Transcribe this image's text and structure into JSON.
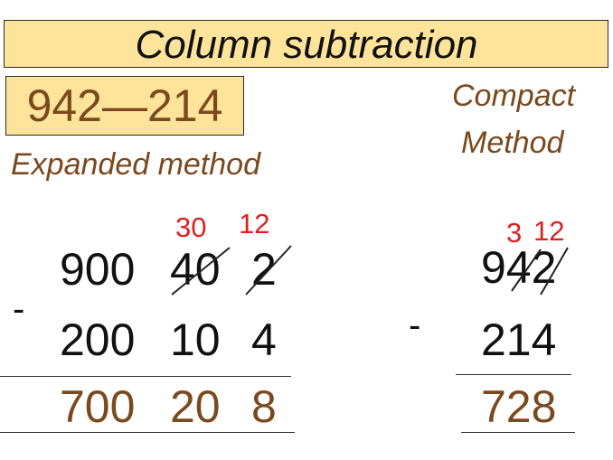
{
  "title": "Column subtraction",
  "problem": "942—214",
  "expanded": {
    "label": "Expanded method",
    "carries": [
      "30",
      "12"
    ],
    "row1": [
      "900",
      "40",
      "2"
    ],
    "minus": "-",
    "row2": [
      "200",
      "10",
      "4"
    ],
    "answer": [
      "700",
      "20",
      "8"
    ]
  },
  "compact": {
    "label_line1": "Compact",
    "label_line2": "Method",
    "carries": [
      "3",
      "12"
    ],
    "row1": "942",
    "minus": "-",
    "row2": "214",
    "answer": "728"
  },
  "colors": {
    "title_bg": "#fde49a",
    "brown": "#7a4a1e",
    "carry_red": "#e02020"
  }
}
